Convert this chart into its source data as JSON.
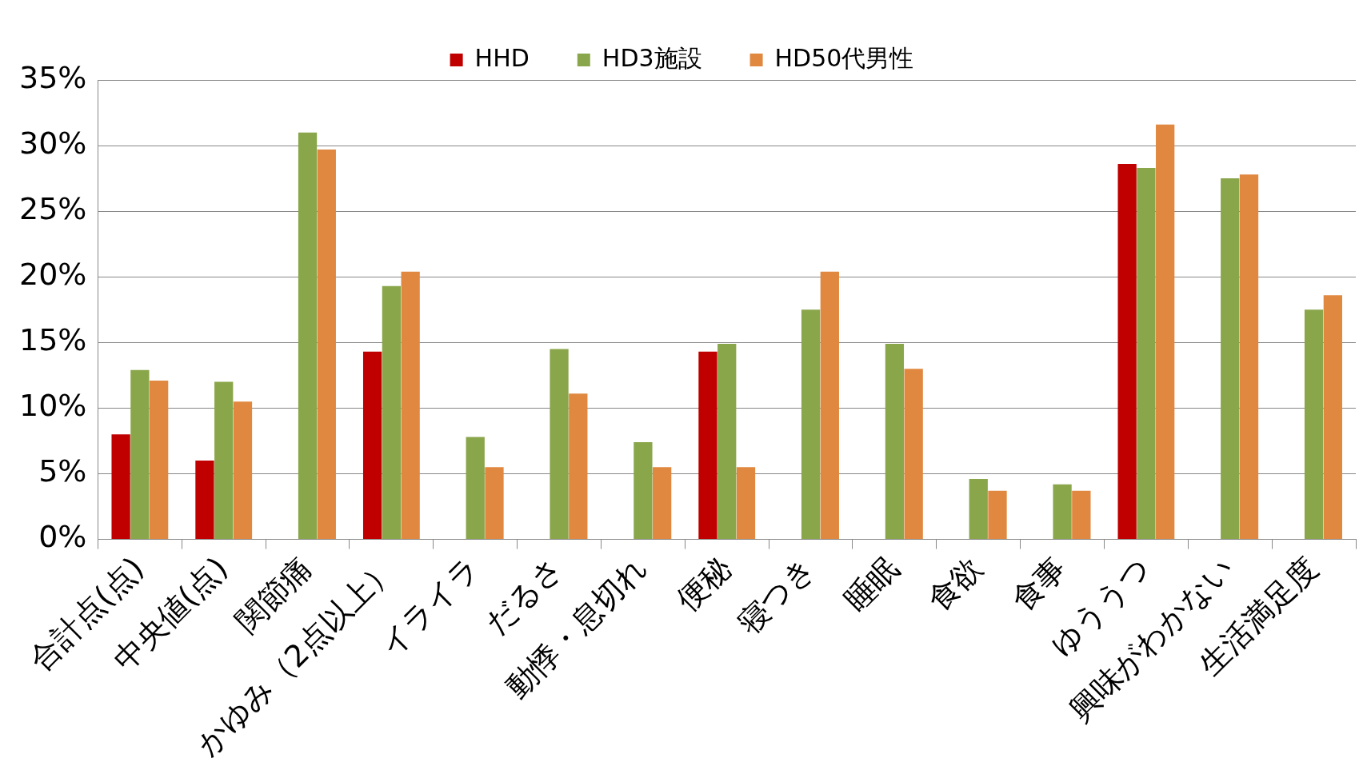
{
  "chart_data": {
    "type": "bar",
    "categories": [
      "合計点(点)",
      "中央値(点)",
      "関節痛",
      "かゆみ（2点以上）",
      "イライラ",
      "だるさ",
      "動悸・息切れ",
      "便秘",
      "寝つき",
      "睡眠",
      "食欲",
      "食事",
      "ゆううつ",
      "興味がわかない",
      "生活満足度"
    ],
    "series": [
      {
        "name": "HHD",
        "color": "#c00000",
        "values": [
          8.0,
          6.0,
          null,
          14.3,
          null,
          null,
          null,
          14.3,
          null,
          null,
          null,
          null,
          28.6,
          null,
          null
        ]
      },
      {
        "name": "HD3施設",
        "color": "#8aa64a",
        "values": [
          12.9,
          12.0,
          31.0,
          19.3,
          7.8,
          14.5,
          7.4,
          14.9,
          17.5,
          14.9,
          4.6,
          4.2,
          28.3,
          27.5,
          17.5
        ]
      },
      {
        "name": "HD50代男性",
        "color": "#e0883f",
        "values": [
          12.1,
          10.5,
          29.7,
          20.4,
          5.5,
          11.1,
          5.5,
          5.5,
          20.4,
          13.0,
          3.7,
          3.7,
          31.6,
          27.8,
          18.6
        ]
      }
    ],
    "ylim": [
      0,
      35
    ],
    "yticks": [
      {
        "value": 0,
        "label": "0%"
      },
      {
        "value": 5,
        "label": "5%"
      },
      {
        "value": 10,
        "label": "10%"
      },
      {
        "value": 15,
        "label": "15%"
      },
      {
        "value": 20,
        "label": "20%"
      },
      {
        "value": 25,
        "label": "25%"
      },
      {
        "value": 30,
        "label": "30%"
      },
      {
        "value": 35,
        "label": "35%"
      }
    ],
    "grid": "y",
    "legend": "top"
  }
}
